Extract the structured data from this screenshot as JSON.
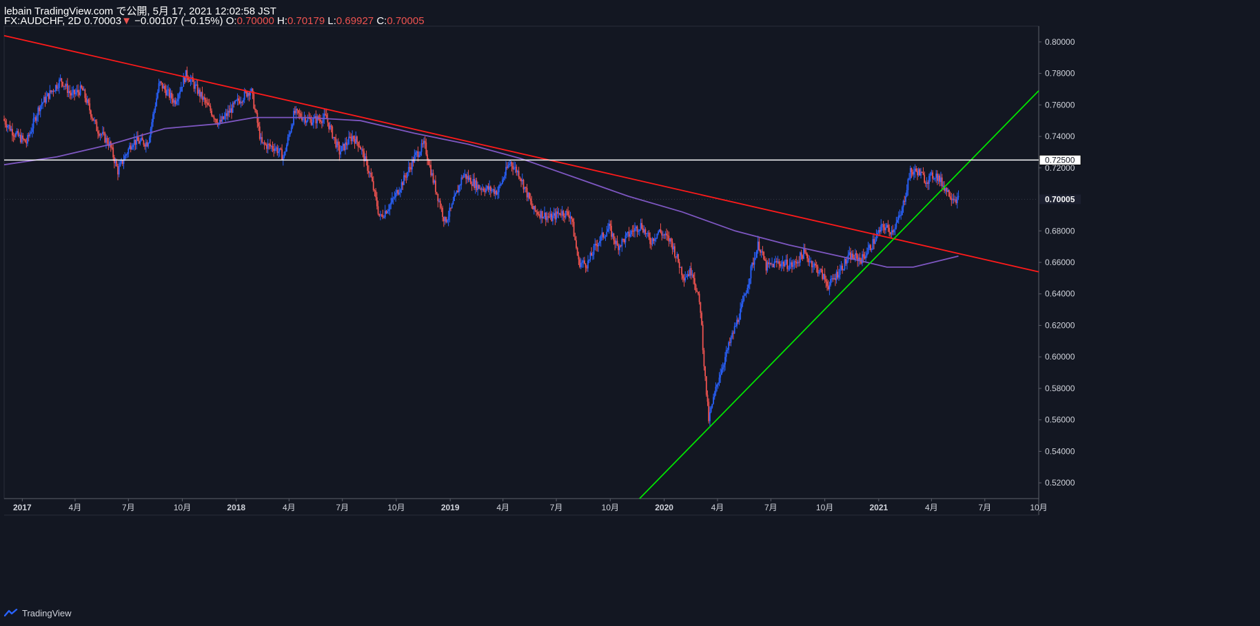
{
  "header": {
    "published": "lebain TradingView.com で公開, 5月 17, 2021 12:02:58 JST",
    "symbol": "FX:AUDCHF, 2D",
    "last": "0.70003",
    "change": "−0.00107 (−0.15%)",
    "o_label": "O:",
    "o_value": "0.70000",
    "h_label": "H:",
    "h_value": "0.70179",
    "l_label": "L:",
    "l_value": "0.69927",
    "c_label": "C:",
    "c_value": "0.70005"
  },
  "footer": {
    "brand": "TradingView",
    "logo_icon": "tradingview-logo-icon"
  },
  "colors": {
    "background": "#131722",
    "up": "#2962ff",
    "down": "#ef5350",
    "ma": "#7e57c2",
    "resistance": "#ff1a1a",
    "support": "#00e600",
    "level": "#ffffff",
    "axis_text": "#d1d4dc"
  },
  "chart_data": {
    "type": "candlestick",
    "symbol": "FX:AUDCHF",
    "interval": "2D",
    "x_range": [
      "2016-12-01",
      "2021-10-01"
    ],
    "ylim": [
      0.51,
      0.81
    ],
    "y_ticks": [
      "0.80000",
      "0.78000",
      "0.76000",
      "0.74000",
      "0.72000",
      "0.68000",
      "0.66000",
      "0.64000",
      "0.62000",
      "0.60000",
      "0.58000",
      "0.56000",
      "0.54000",
      "0.52000"
    ],
    "x_ticks": [
      {
        "label": "2017",
        "date": "2017-01-01"
      },
      {
        "label": "4月",
        "date": "2017-04-01"
      },
      {
        "label": "7月",
        "date": "2017-07-01"
      },
      {
        "label": "10月",
        "date": "2017-10-01"
      },
      {
        "label": "2018",
        "date": "2018-01-01"
      },
      {
        "label": "4月",
        "date": "2018-04-01"
      },
      {
        "label": "7月",
        "date": "2018-07-01"
      },
      {
        "label": "10月",
        "date": "2018-10-01"
      },
      {
        "label": "2019",
        "date": "2019-01-01"
      },
      {
        "label": "4月",
        "date": "2019-04-01"
      },
      {
        "label": "7月",
        "date": "2019-07-01"
      },
      {
        "label": "10月",
        "date": "2019-10-01"
      },
      {
        "label": "2020",
        "date": "2020-01-01"
      },
      {
        "label": "4月",
        "date": "2020-04-01"
      },
      {
        "label": "7月",
        "date": "2020-07-01"
      },
      {
        "label": "10月",
        "date": "2020-10-01"
      },
      {
        "label": "2021",
        "date": "2021-01-01"
      },
      {
        "label": "4月",
        "date": "2021-04-01"
      },
      {
        "label": "7月",
        "date": "2021-07-01"
      },
      {
        "label": "10月",
        "date": "2021-10-01"
      }
    ],
    "price_path": [
      [
        "2016-12-01",
        0.751
      ],
      [
        "2016-12-20",
        0.742
      ],
      [
        "2017-01-10",
        0.736
      ],
      [
        "2017-02-01",
        0.759
      ],
      [
        "2017-03-10",
        0.776
      ],
      [
        "2017-03-28",
        0.766
      ],
      [
        "2017-04-15",
        0.77
      ],
      [
        "2017-05-10",
        0.745
      ],
      [
        "2017-06-01",
        0.735
      ],
      [
        "2017-06-15",
        0.718
      ],
      [
        "2017-07-10",
        0.737
      ],
      [
        "2017-08-05",
        0.736
      ],
      [
        "2017-08-25",
        0.774
      ],
      [
        "2017-09-20",
        0.762
      ],
      [
        "2017-10-10",
        0.78
      ],
      [
        "2017-11-05",
        0.765
      ],
      [
        "2017-12-05",
        0.748
      ],
      [
        "2018-01-05",
        0.762
      ],
      [
        "2018-01-28",
        0.77
      ],
      [
        "2018-02-15",
        0.735
      ],
      [
        "2018-03-10",
        0.733
      ],
      [
        "2018-03-25",
        0.727
      ],
      [
        "2018-04-12",
        0.755
      ],
      [
        "2018-05-10",
        0.75
      ],
      [
        "2018-06-05",
        0.752
      ],
      [
        "2018-06-28",
        0.73
      ],
      [
        "2018-07-20",
        0.74
      ],
      [
        "2018-08-01",
        0.735
      ],
      [
        "2018-08-20",
        0.715
      ],
      [
        "2018-09-05",
        0.688
      ],
      [
        "2018-09-25",
        0.698
      ],
      [
        "2018-10-15",
        0.712
      ],
      [
        "2018-11-05",
        0.728
      ],
      [
        "2018-11-20",
        0.735
      ],
      [
        "2018-12-05",
        0.712
      ],
      [
        "2018-12-25",
        0.686
      ],
      [
        "2019-01-05",
        0.694
      ],
      [
        "2019-01-25",
        0.716
      ],
      [
        "2019-02-20",
        0.708
      ],
      [
        "2019-03-25",
        0.705
      ],
      [
        "2019-04-15",
        0.724
      ],
      [
        "2019-05-01",
        0.716
      ],
      [
        "2019-05-25",
        0.693
      ],
      [
        "2019-06-25",
        0.688
      ],
      [
        "2019-07-10",
        0.692
      ],
      [
        "2019-07-28",
        0.69
      ],
      [
        "2019-08-10",
        0.66
      ],
      [
        "2019-08-25",
        0.659
      ],
      [
        "2019-09-10",
        0.672
      ],
      [
        "2019-10-01",
        0.682
      ],
      [
        "2019-10-15",
        0.67
      ],
      [
        "2019-11-10",
        0.68
      ],
      [
        "2019-11-25",
        0.684
      ],
      [
        "2019-12-10",
        0.673
      ],
      [
        "2019-12-25",
        0.68
      ],
      [
        "2020-01-15",
        0.673
      ],
      [
        "2020-02-05",
        0.651
      ],
      [
        "2020-02-20",
        0.655
      ],
      [
        "2020-03-05",
        0.63
      ],
      [
        "2020-03-12",
        0.59
      ],
      [
        "2020-03-19",
        0.56
      ],
      [
        "2020-04-05",
        0.587
      ],
      [
        "2020-04-25",
        0.61
      ],
      [
        "2020-05-15",
        0.632
      ],
      [
        "2020-06-01",
        0.658
      ],
      [
        "2020-06-12",
        0.672
      ],
      [
        "2020-06-25",
        0.657
      ],
      [
        "2020-07-15",
        0.66
      ],
      [
        "2020-08-10",
        0.658
      ],
      [
        "2020-08-28",
        0.666
      ],
      [
        "2020-09-10",
        0.66
      ],
      [
        "2020-09-25",
        0.654
      ],
      [
        "2020-10-10",
        0.645
      ],
      [
        "2020-10-28",
        0.655
      ],
      [
        "2020-11-15",
        0.664
      ],
      [
        "2020-12-05",
        0.662
      ],
      [
        "2020-12-20",
        0.67
      ],
      [
        "2021-01-10",
        0.683
      ],
      [
        "2021-01-25",
        0.68
      ],
      [
        "2021-02-10",
        0.69
      ],
      [
        "2021-02-25",
        0.717
      ],
      [
        "2021-03-10",
        0.718
      ],
      [
        "2021-03-25",
        0.712
      ],
      [
        "2021-04-10",
        0.716
      ],
      [
        "2021-04-25",
        0.708
      ],
      [
        "2021-05-05",
        0.703
      ],
      [
        "2021-05-17",
        0.7
      ]
    ],
    "moving_average": [
      [
        "2016-12-01",
        0.722
      ],
      [
        "2017-03-01",
        0.727
      ],
      [
        "2017-06-01",
        0.735
      ],
      [
        "2017-09-01",
        0.745
      ],
      [
        "2017-12-01",
        0.748
      ],
      [
        "2018-02-01",
        0.752
      ],
      [
        "2018-05-01",
        0.752
      ],
      [
        "2018-08-01",
        0.75
      ],
      [
        "2018-11-01",
        0.742
      ],
      [
        "2019-02-01",
        0.735
      ],
      [
        "2019-05-01",
        0.726
      ],
      [
        "2019-08-01",
        0.714
      ],
      [
        "2019-11-01",
        0.702
      ],
      [
        "2020-02-01",
        0.692
      ],
      [
        "2020-05-01",
        0.68
      ],
      [
        "2020-08-01",
        0.671
      ],
      [
        "2020-10-01",
        0.666
      ],
      [
        "2020-12-01",
        0.661
      ],
      [
        "2021-01-15",
        0.657
      ],
      [
        "2021-03-01",
        0.657
      ],
      [
        "2021-05-17",
        0.664
      ]
    ],
    "trendlines": [
      {
        "name": "resistance",
        "color": "#ff1a1a",
        "from": [
          "2016-12-01",
          0.804
        ],
        "to": [
          "2021-10-01",
          0.654
        ]
      },
      {
        "name": "support",
        "color": "#00e600",
        "from": [
          "2019-11-20",
          0.51
        ],
        "to": [
          "2021-10-01",
          0.769
        ]
      }
    ],
    "horizontal_levels": [
      {
        "price": 0.725,
        "label": "0.72500"
      }
    ],
    "last_price": {
      "price": 0.70005,
      "label": "0.70005"
    }
  }
}
